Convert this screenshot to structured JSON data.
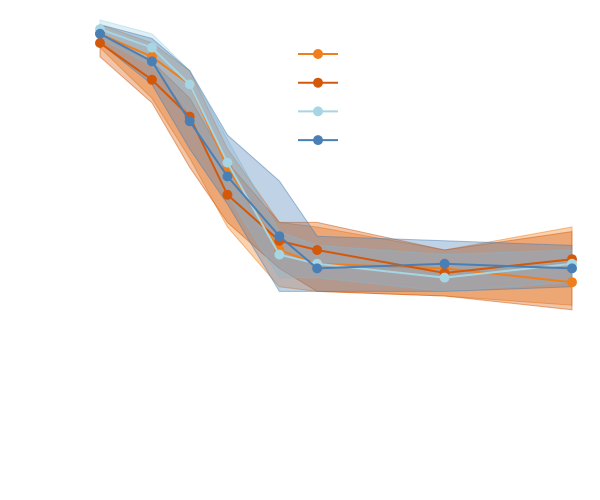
{
  "chart_data": {
    "type": "line",
    "x": [
      0,
      1.1,
      1.9,
      2.7,
      3.8,
      4.6,
      7.3,
      10
    ],
    "xlim": [
      0,
      10
    ],
    "ylim": [
      0,
      1
    ],
    "legend": "upper center",
    "series": [
      {
        "color": "#f07e1b",
        "values": [
          0.97,
          0.92,
          0.86,
          0.68,
          0.5,
          0.47,
          0.46,
          0.43
        ],
        "lower": [
          0.94,
          0.83,
          0.7,
          0.55,
          0.42,
          0.41,
          0.4,
          0.38
        ],
        "upper": [
          0.99,
          0.95,
          0.89,
          0.72,
          0.56,
          0.55,
          0.5,
          0.55
        ]
      },
      {
        "color": "#d4580a",
        "values": [
          0.95,
          0.87,
          0.79,
          0.62,
          0.52,
          0.5,
          0.45,
          0.48
        ],
        "lower": [
          0.92,
          0.82,
          0.68,
          0.56,
          0.46,
          0.41,
          0.4,
          0.37
        ],
        "upper": [
          0.97,
          0.91,
          0.83,
          0.69,
          0.56,
          0.56,
          0.5,
          0.54
        ]
      },
      {
        "color": "#a6d5e3",
        "values": [
          0.98,
          0.94,
          0.86,
          0.69,
          0.49,
          0.47,
          0.44,
          0.47
        ],
        "lower": [
          0.96,
          0.9,
          0.8,
          0.62,
          0.44,
          0.44,
          0.41,
          0.43
        ],
        "upper": [
          1.0,
          0.97,
          0.89,
          0.74,
          0.54,
          0.51,
          0.49,
          0.5
        ]
      },
      {
        "color": "#4a7fb5",
        "values": [
          0.97,
          0.91,
          0.78,
          0.66,
          0.53,
          0.46,
          0.47,
          0.46
        ],
        "lower": [
          0.95,
          0.86,
          0.72,
          0.6,
          0.41,
          0.41,
          0.41,
          0.42
        ],
        "upper": [
          0.99,
          0.96,
          0.89,
          0.75,
          0.65,
          0.53,
          0.52,
          0.51
        ]
      }
    ]
  }
}
